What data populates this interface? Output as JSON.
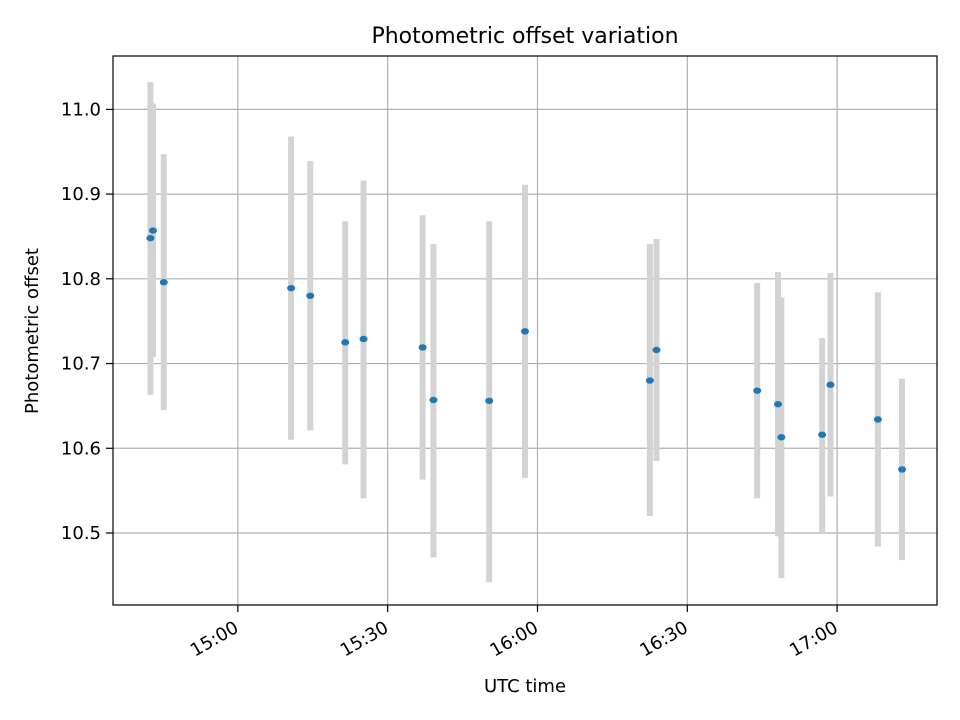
{
  "chart_data": {
    "type": "scatter",
    "title": "Photometric offset variation",
    "xlabel": "UTC time",
    "ylabel": "Photometric offset",
    "grid": true,
    "x_ticks": [
      "15:00",
      "15:30",
      "16:00",
      "16:30",
      "17:00"
    ],
    "x_tick_values": [
      "15:00",
      "15:30",
      "16:00",
      "16:30",
      "17:00"
    ],
    "y_ticks": [
      10.5,
      10.6,
      10.7,
      10.8,
      10.9,
      11.0
    ],
    "xlim": [
      "14:35",
      "17:20"
    ],
    "ylim": [
      10.415,
      11.063
    ],
    "points": [
      {
        "x": "14:42:30",
        "y": 10.848,
        "ylo": 10.663,
        "yhi": 11.032
      },
      {
        "x": "14:43:00",
        "y": 10.857,
        "ylo": 10.708,
        "yhi": 11.007
      },
      {
        "x": "14:45:10",
        "y": 10.796,
        "ylo": 10.645,
        "yhi": 10.947
      },
      {
        "x": "15:10:40",
        "y": 10.789,
        "ylo": 10.61,
        "yhi": 10.968
      },
      {
        "x": "15:14:30",
        "y": 10.78,
        "ylo": 10.621,
        "yhi": 10.939
      },
      {
        "x": "15:21:30",
        "y": 10.725,
        "ylo": 10.581,
        "yhi": 10.868
      },
      {
        "x": "15:25:10",
        "y": 10.729,
        "ylo": 10.541,
        "yhi": 10.916
      },
      {
        "x": "15:37:00",
        "y": 10.719,
        "ylo": 10.563,
        "yhi": 10.875
      },
      {
        "x": "15:39:10",
        "y": 10.657,
        "ylo": 10.471,
        "yhi": 10.841
      },
      {
        "x": "15:50:20",
        "y": 10.656,
        "ylo": 10.442,
        "yhi": 10.868
      },
      {
        "x": "15:57:30",
        "y": 10.738,
        "ylo": 10.565,
        "yhi": 10.911
      },
      {
        "x": "16:22:30",
        "y": 10.68,
        "ylo": 10.52,
        "yhi": 10.841
      },
      {
        "x": "16:23:50",
        "y": 10.716,
        "ylo": 10.585,
        "yhi": 10.847
      },
      {
        "x": "16:44:00",
        "y": 10.668,
        "ylo": 10.541,
        "yhi": 10.795
      },
      {
        "x": "16:48:10",
        "y": 10.652,
        "ylo": 10.496,
        "yhi": 10.808
      },
      {
        "x": "16:48:50",
        "y": 10.613,
        "ylo": 10.447,
        "yhi": 10.778
      },
      {
        "x": "16:57:00",
        "y": 10.616,
        "ylo": 10.5,
        "yhi": 10.73
      },
      {
        "x": "16:58:40",
        "y": 10.675,
        "ylo": 10.543,
        "yhi": 10.807
      },
      {
        "x": "17:08:10",
        "y": 10.634,
        "ylo": 10.484,
        "yhi": 10.784
      },
      {
        "x": "17:13:00",
        "y": 10.575,
        "ylo": 10.468,
        "yhi": 10.682
      }
    ],
    "colors": {
      "marker": "#1f77b4",
      "errorbar": "#d3d3d3",
      "grid": "#b0b0b0",
      "axes": "#000000"
    }
  }
}
